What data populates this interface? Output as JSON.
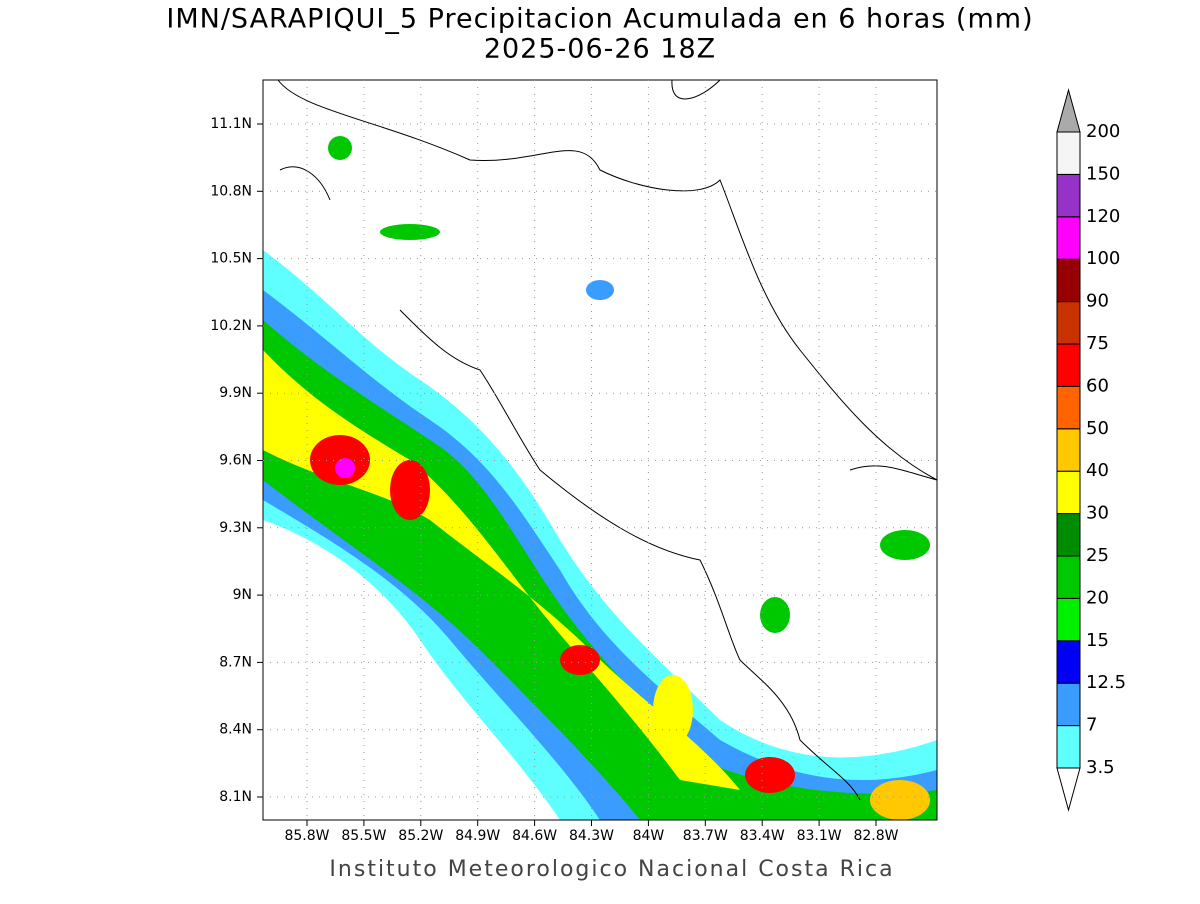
{
  "header": {
    "title": "IMN/SARAPIQUI_5 Precipitacion Acumulada en 6 horas (mm)",
    "subtitle": "2025-06-26 18Z"
  },
  "map": {
    "lon_ticks": [
      "85.8W",
      "85.5W",
      "85.2W",
      "84.9W",
      "84.6W",
      "84.3W",
      "84W",
      "83.7W",
      "83.4W",
      "83.1W",
      "82.8W"
    ],
    "lat_ticks": [
      "11.1N",
      "10.8N",
      "10.5N",
      "10.2N",
      "9.9N",
      "9.6N",
      "9.3N",
      "9N",
      "8.7N",
      "8.4N",
      "8.1N"
    ]
  },
  "colorbar": {
    "levels": [
      "3.5",
      "7",
      "12.5",
      "15",
      "20",
      "25",
      "30",
      "40",
      "50",
      "60",
      "75",
      "90",
      "100",
      "120",
      "150",
      "200"
    ],
    "colors": [
      "#5fffff",
      "#3a9cff",
      "#0000f5",
      "#00f000",
      "#00c800",
      "#008c00",
      "#ffff00",
      "#ffc800",
      "#ff6400",
      "#ff0000",
      "#c83200",
      "#960000",
      "#ff00ff",
      "#9632c8",
      "#f5f5f5"
    ]
  },
  "footer": "Instituto Meteorologico Nacional Costa Rica"
}
